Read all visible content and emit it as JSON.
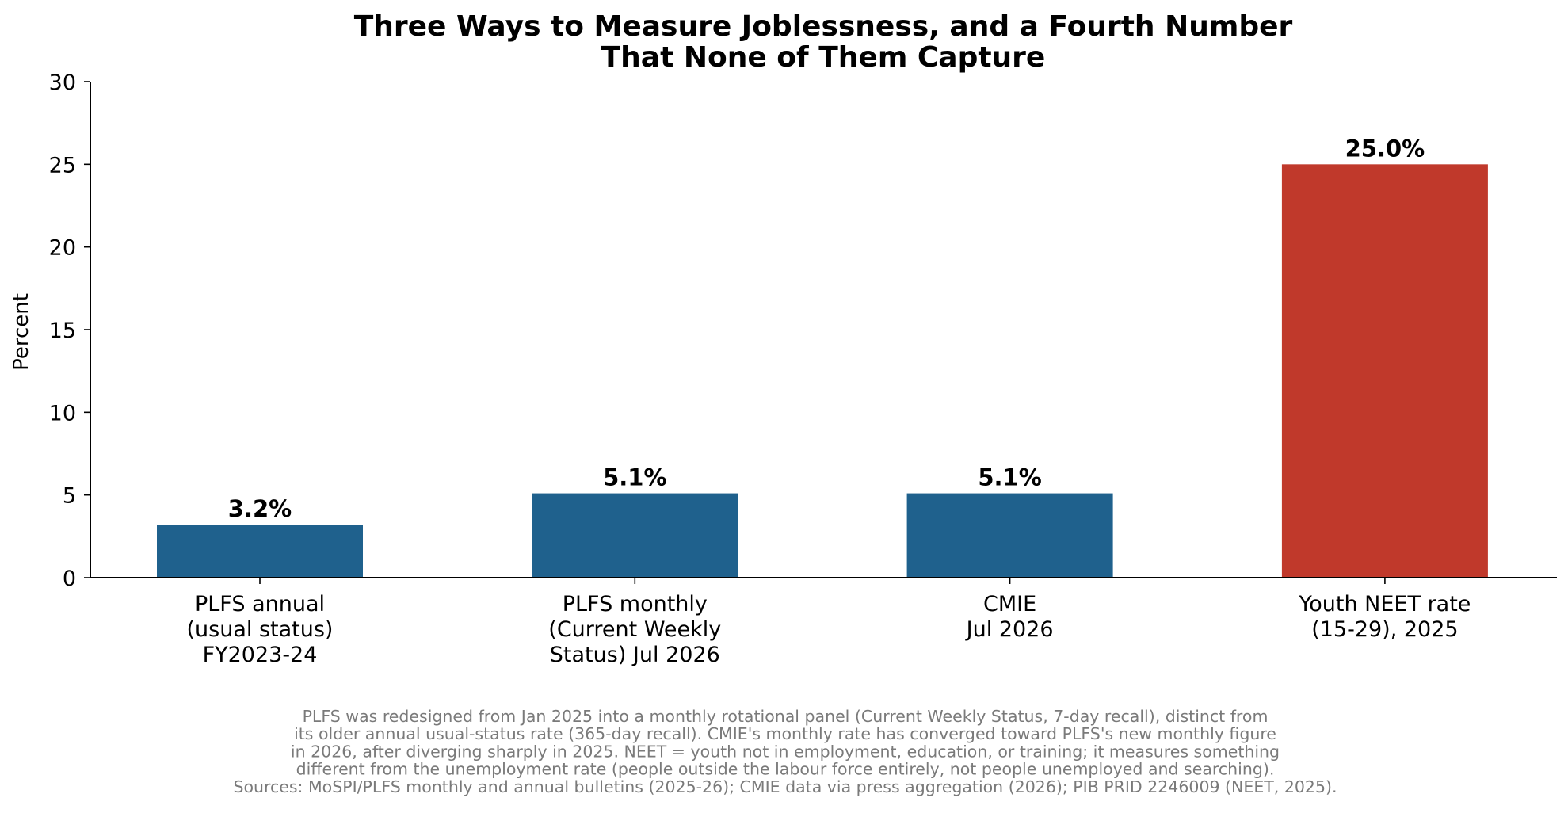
{
  "chart_data": {
    "type": "bar",
    "title_lines": [
      "Three Ways to Measure Joblessness, and a Fourth Number",
      "That None of Them Capture"
    ],
    "ylabel": "Percent",
    "xlabel": "",
    "ylim": [
      0,
      30
    ],
    "yticks": [
      0,
      5,
      10,
      15,
      20,
      25,
      30
    ],
    "grid": false,
    "categories": [
      [
        "PLFS annual",
        "(usual status)",
        "FY2023-24"
      ],
      [
        "PLFS monthly",
        "(Current Weekly",
        "Status) Jul 2026"
      ],
      [
        "CMIE",
        "Jul 2026"
      ],
      [
        "Youth NEET rate",
        "(15-29), 2025"
      ]
    ],
    "values": [
      3.2,
      5.1,
      5.1,
      25.0
    ],
    "value_labels": [
      "3.2%",
      "5.1%",
      "5.1%",
      "25.0%"
    ],
    "colors": [
      "#1f618d",
      "#1f618d",
      "#1f618d",
      "#c0392b"
    ],
    "footnote_lines": [
      "PLFS was redesigned from Jan 2025 into a monthly rotational panel (Current Weekly Status, 7-day recall), distinct from",
      "its older annual usual-status rate (365-day recall). CMIE's monthly rate has converged toward PLFS's new monthly figure",
      "in 2026, after diverging sharply in 2025. NEET = youth not in employment, education, or training; it measures something",
      "different from the unemployment rate (people outside the labour force entirely, not people unemployed and searching).",
      "Sources: MoSPI/PLFS monthly and annual bulletins (2025-26); CMIE data via press aggregation (2026); PIB PRID 2246009 (NEET, 2025)."
    ]
  }
}
